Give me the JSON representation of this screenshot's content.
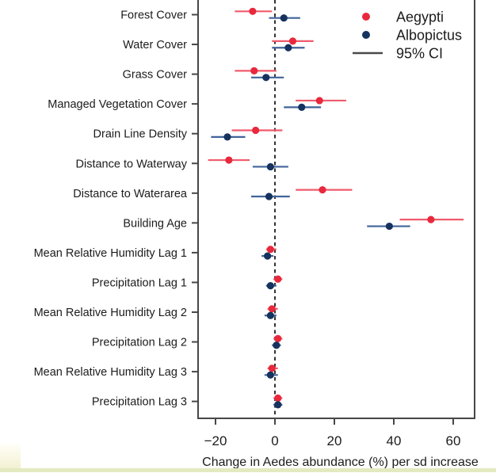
{
  "figure": {
    "xlabel": "Change in Aedes abundance (%) per sd increase",
    "xtick_labels": [
      "−20",
      "0",
      "20",
      "40",
      "60"
    ],
    "legend": {
      "items": [
        {
          "label": "Aegypti",
          "symbol": "dot",
          "color": "#e8283c"
        },
        {
          "label": "Albopictus",
          "symbol": "dot",
          "color": "#16325f"
        },
        {
          "label": "95% CI",
          "symbol": "line",
          "color": "#4a4a4a"
        }
      ]
    }
  },
  "colors": {
    "aegypti_dot": "#e8283c",
    "aegypti_ci": "#f05b6c",
    "albopictus_dot": "#16325f",
    "albopictus_ci": "#41639a",
    "axis": "#474747",
    "text": "#1c1c1c",
    "reference_line": "#000000",
    "background": "#ffffff",
    "bottom_border": "#e4eac0"
  },
  "chart_data": {
    "type": "scatter",
    "subtype": "forest-plot-with-error-bars",
    "orientation": "horizontal",
    "title": "",
    "xlabel": "Change in Aedes abundance (%) per sd increase",
    "ylabel": "",
    "xlim": [
      -26,
      67
    ],
    "xticks": [
      -20,
      0,
      20,
      40,
      60
    ],
    "reference_line_x": 0,
    "grid": false,
    "error_bars": "95% CI",
    "legend_position": "top-right",
    "categories": [
      "Forest Cover",
      "Water Cover",
      "Grass Cover",
      "Managed Vegetation Cover",
      "Drain Line Density",
      "Distance to Waterway",
      "Distance to Waterarea",
      "Building Age",
      "Mean Relative Humidity Lag 1",
      "Precipitation Lag 1",
      "Mean Relative Humidity Lag 2",
      "Precipitation Lag 2",
      "Mean Relative Humidity Lag 3",
      "Precipitation Lag 3"
    ],
    "series": [
      {
        "name": "Aegypti",
        "values": [
          -7.5,
          6,
          -7,
          15,
          -6.5,
          -15.5,
          16,
          52.5,
          -1.5,
          1,
          -1,
          1,
          -1,
          1
        ],
        "ci_low": [
          -13.5,
          -1,
          -13.5,
          7,
          -14.5,
          -22.5,
          7,
          42,
          -3,
          -0.5,
          -2.5,
          -0.5,
          -2.5,
          -0.5
        ],
        "ci_high": [
          -1,
          13,
          0.5,
          24,
          2.5,
          -8.5,
          26,
          63.5,
          0.5,
          2.5,
          1,
          2.5,
          1,
          2.5
        ]
      },
      {
        "name": "Albopictus",
        "values": [
          3,
          4.5,
          -3,
          9,
          -16,
          -1.5,
          -2,
          38.5,
          -2.5,
          -1.5,
          -1.5,
          0.5,
          -1.5,
          1
        ],
        "ci_low": [
          -2,
          -1,
          -8,
          3,
          -21.5,
          -7.5,
          -8,
          31,
          -4.5,
          -3,
          -3.5,
          -1,
          -3.5,
          -0.5
        ],
        "ci_high": [
          8.5,
          10,
          3,
          15.5,
          -10,
          4.5,
          5,
          45.5,
          -0.5,
          0.5,
          0.5,
          2,
          1,
          2.5
        ]
      }
    ]
  }
}
